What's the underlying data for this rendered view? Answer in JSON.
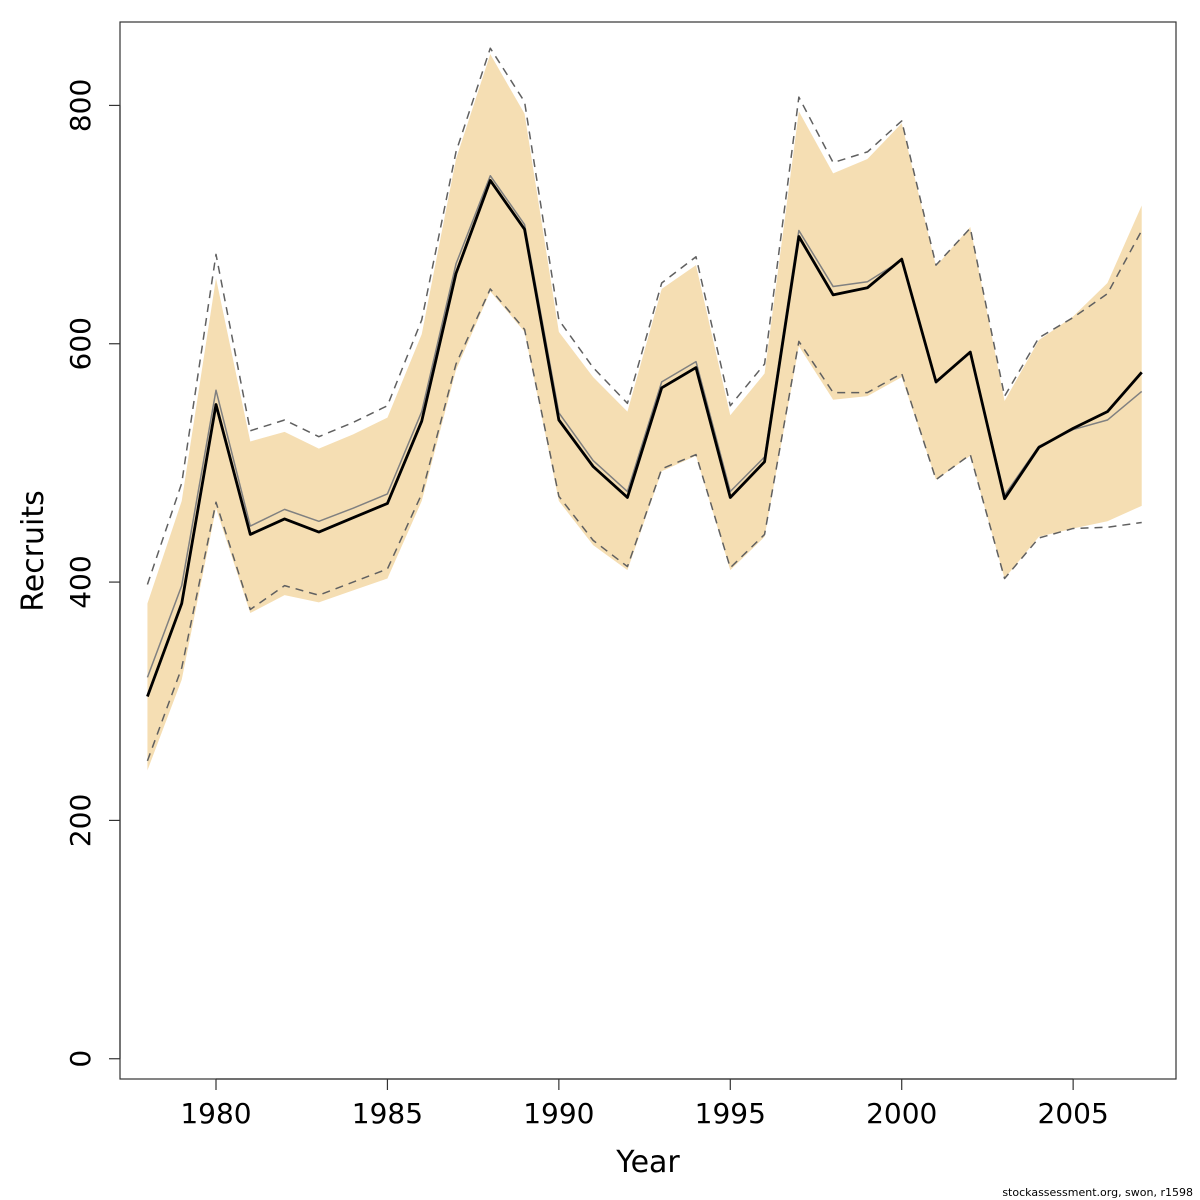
{
  "chart_data": {
    "type": "area",
    "xlabel": "Year",
    "ylabel": "Recruits",
    "xlim": [
      1977.2,
      2008.0
    ],
    "ylim": [
      -17,
      870
    ],
    "x_ticks": [
      1980,
      1985,
      1990,
      1995,
      2000,
      2005
    ],
    "y_ticks": [
      0,
      200,
      400,
      600,
      800
    ],
    "x": [
      1978,
      1979,
      1980,
      1981,
      1982,
      1983,
      1984,
      1985,
      1986,
      1987,
      1988,
      1989,
      1990,
      1991,
      1992,
      1993,
      1994,
      1995,
      1996,
      1997,
      1998,
      1999,
      2000,
      2001,
      2002,
      2003,
      2004,
      2005,
      2006,
      2007
    ],
    "series": [
      {
        "role": "band",
        "color": "#f5deb3",
        "lower": [
          242,
          318,
          462,
          374,
          389,
          383,
          393,
          403,
          468,
          578,
          644,
          610,
          468,
          431,
          410,
          493,
          506,
          410,
          438,
          598,
          553,
          556,
          572,
          486,
          506,
          403,
          438,
          445,
          451,
          464
        ],
        "upper": [
          382,
          468,
          655,
          518,
          526,
          512,
          524,
          538,
          608,
          755,
          843,
          793,
          610,
          572,
          543,
          646,
          666,
          540,
          575,
          795,
          743,
          755,
          785,
          665,
          698,
          552,
          603,
          623,
          651,
          716
        ]
      },
      {
        "role": "main",
        "color": "#000000",
        "values": [
          304,
          382,
          549,
          440,
          453,
          442,
          454,
          466,
          535,
          659,
          737,
          696,
          536,
          497,
          471,
          563,
          580,
          471,
          501,
          690,
          641,
          647,
          671,
          568,
          593,
          470,
          513,
          529,
          543,
          576
        ]
      },
      {
        "role": "alt",
        "color": "#808080",
        "values": [
          320,
          397,
          561,
          447,
          461,
          451,
          462,
          474,
          543,
          667,
          741,
          700,
          542,
          502,
          476,
          568,
          585,
          476,
          505,
          695,
          648,
          652,
          670,
          567,
          593,
          473,
          514,
          528,
          536,
          560
        ]
      },
      {
        "role": "alt-lower",
        "color": "#606060",
        "dashed": true,
        "values": [
          250,
          328,
          467,
          377,
          397,
          389,
          400,
          411,
          474,
          583,
          646,
          612,
          472,
          435,
          413,
          495,
          507,
          412,
          440,
          602,
          559,
          559,
          575,
          486,
          507,
          403,
          437,
          445,
          446,
          450
        ]
      },
      {
        "role": "alt-upper",
        "color": "#606060",
        "dashed": true,
        "values": [
          398,
          483,
          675,
          527,
          536,
          522,
          534,
          548,
          620,
          761,
          848,
          803,
          620,
          580,
          550,
          651,
          673,
          548,
          583,
          807,
          752,
          761,
          787,
          666,
          697,
          556,
          605,
          622,
          642,
          695
        ]
      }
    ],
    "credit": "stockassessment.org, swon, r1598"
  }
}
